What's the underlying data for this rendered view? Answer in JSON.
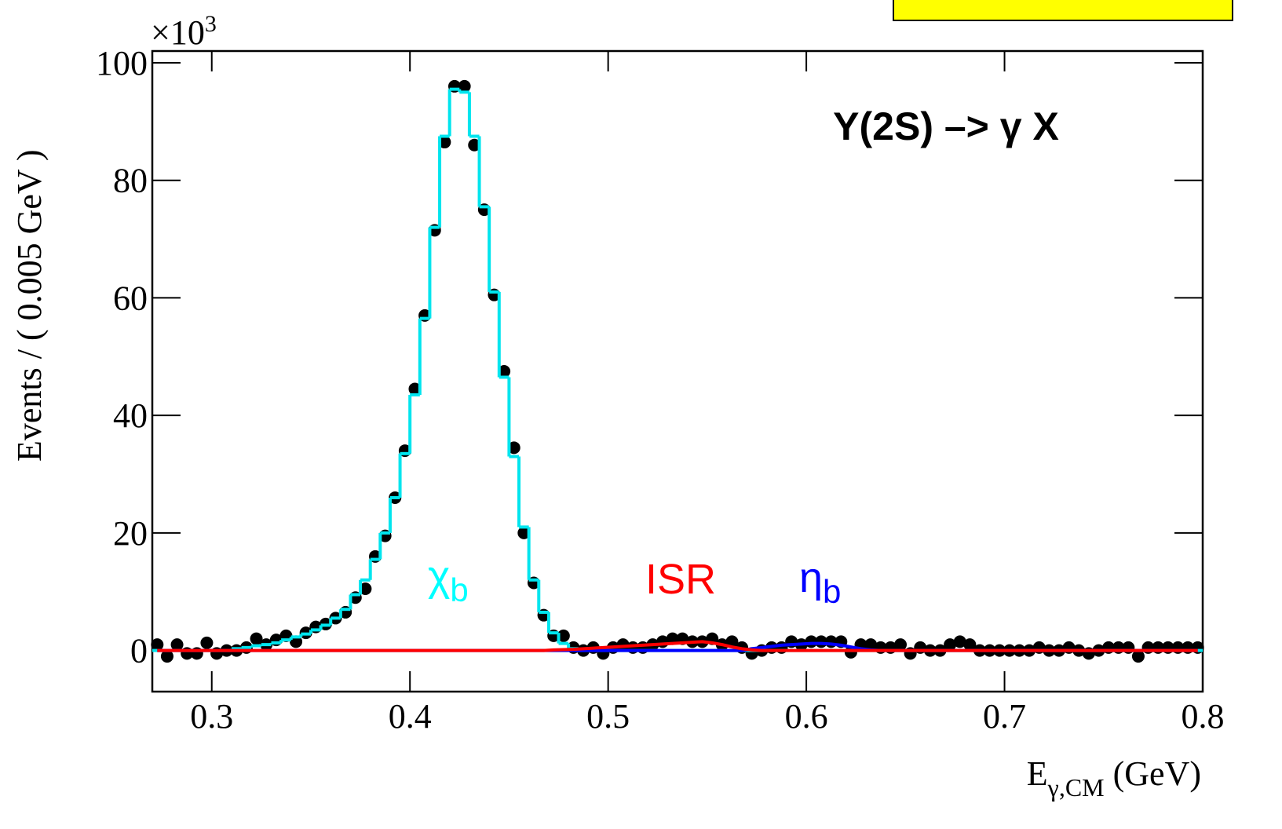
{
  "chart_data": {
    "type": "histogram-fit",
    "title": "Y(2S) –> γ X",
    "y_label": "Events / ( 0.005 GeV )",
    "y_exponent": {
      "base": "×10",
      "power": "3"
    },
    "x_label": {
      "text": "E",
      "subscript": "γ,CM",
      "unit": " (GeV)"
    },
    "xlim": [
      0.27,
      0.8
    ],
    "ylim": [
      -7,
      102
    ],
    "xticks": [
      0.3,
      0.4,
      0.5,
      0.6,
      0.7,
      0.8
    ],
    "yticks": [
      0,
      20,
      40,
      60,
      80,
      100
    ],
    "x": [
      0.2725,
      0.2775,
      0.2825,
      0.2875,
      0.2925,
      0.2975,
      0.3025,
      0.3075,
      0.3125,
      0.3175,
      0.3225,
      0.3275,
      0.3325,
      0.3375,
      0.3425,
      0.3475,
      0.3525,
      0.3575,
      0.3625,
      0.3675,
      0.3725,
      0.3775,
      0.3825,
      0.3875,
      0.3925,
      0.3975,
      0.4025,
      0.4075,
      0.4125,
      0.4175,
      0.4225,
      0.4275,
      0.4325,
      0.4375,
      0.4425,
      0.4475,
      0.4525,
      0.4575,
      0.4625,
      0.4675,
      0.4725,
      0.4775,
      0.4825,
      0.4875,
      0.4925,
      0.4975,
      0.5025,
      0.5075,
      0.5125,
      0.5175,
      0.5225,
      0.5275,
      0.5325,
      0.5375,
      0.5425,
      0.5475,
      0.5525,
      0.5575,
      0.5625,
      0.5675,
      0.5725,
      0.5775,
      0.5825,
      0.5875,
      0.5925,
      0.5975,
      0.6025,
      0.6075,
      0.6125,
      0.6175,
      0.6225,
      0.6275,
      0.6325,
      0.6375,
      0.6425,
      0.6475,
      0.6525,
      0.6575,
      0.6625,
      0.6675,
      0.6725,
      0.6775,
      0.6825,
      0.6875,
      0.6925,
      0.6975,
      0.7025,
      0.7075,
      0.7125,
      0.7175,
      0.7225,
      0.7275,
      0.7325,
      0.7375,
      0.7425,
      0.7475,
      0.7525,
      0.7575,
      0.7625,
      0.7675,
      0.7725,
      0.7775,
      0.7825,
      0.7875,
      0.7925,
      0.7975
    ],
    "series": [
      {
        "kind": "points",
        "color": "#000000",
        "values": [
          1,
          -1,
          1,
          -0.5,
          -0.5,
          1.3,
          -0.5,
          0,
          0,
          0.5,
          2,
          1,
          1.8,
          2.5,
          1.5,
          3,
          4,
          4.5,
          5.5,
          6.5,
          9,
          10.5,
          16,
          19.5,
          26,
          34,
          44.5,
          57,
          71.5,
          86.5,
          96,
          96,
          86,
          75,
          60.5,
          47.5,
          34.5,
          20,
          11.5,
          6,
          2.5,
          2.5,
          0.5,
          0,
          0.5,
          -0.5,
          0.5,
          1,
          0.5,
          0.5,
          1,
          1.5,
          2,
          2,
          1.5,
          1.5,
          2,
          1,
          1.5,
          0.5,
          -0.5,
          0,
          0.5,
          0.5,
          1.5,
          1,
          1.5,
          1.5,
          1.5,
          1.5,
          -0.3,
          1,
          1,
          0.5,
          0.5,
          1,
          -0.5,
          0.5,
          0,
          0,
          1,
          1.5,
          1,
          0,
          0,
          0,
          0,
          0,
          0,
          0.5,
          0,
          0,
          0.5,
          0,
          -0.5,
          0,
          0.5,
          0.5,
          0.5,
          -1,
          0.5,
          0.5,
          0.5,
          0.5,
          0.5,
          0.5
        ]
      },
      {
        "kind": "step",
        "color": "#00e5ee",
        "values": [
          0,
          0,
          0,
          0,
          0,
          0,
          0,
          0,
          0.3,
          0.5,
          0.8,
          1,
          1.3,
          1.8,
          2.3,
          2.8,
          3.5,
          4.3,
          5.5,
          7,
          9.5,
          12,
          15.5,
          20,
          26,
          33.5,
          43.5,
          56.5,
          72,
          87.5,
          95.5,
          95,
          87.5,
          75.5,
          61,
          46.5,
          33,
          21,
          12,
          6.5,
          3,
          1.2,
          0.3,
          0,
          0,
          0,
          0,
          0,
          0,
          0,
          0,
          0,
          0,
          0,
          0,
          0,
          0,
          0,
          0,
          0,
          0,
          0,
          0,
          0,
          0,
          0,
          0,
          0,
          0,
          0,
          0,
          0,
          0,
          0,
          0,
          0,
          0,
          0,
          0,
          0,
          0,
          0,
          0,
          0,
          0,
          0,
          0,
          0,
          0,
          0,
          0,
          0,
          0,
          0,
          0,
          0,
          0,
          0,
          0,
          0,
          0,
          0,
          0,
          0,
          0,
          0
        ]
      },
      {
        "kind": "curve",
        "color": "#0000ff",
        "values": [
          0,
          0,
          0,
          0,
          0,
          0,
          0,
          0,
          0,
          0,
          0,
          0,
          0,
          0,
          0,
          0,
          0,
          0,
          0,
          0,
          0,
          0,
          0,
          0,
          0,
          0,
          0,
          0,
          0,
          0,
          0,
          0,
          0,
          0,
          0,
          0,
          0,
          0,
          0,
          0,
          0,
          0,
          0,
          0,
          0,
          0,
          0,
          0,
          0,
          0,
          0,
          0,
          0,
          0,
          0,
          0,
          0,
          0,
          0,
          0,
          0.3,
          0.5,
          0.7,
          0.9,
          1,
          1.1,
          1.2,
          1.2,
          1.1,
          0.9,
          0.6,
          0.3,
          0.1,
          0,
          0,
          0,
          0,
          0,
          0,
          0,
          0,
          0,
          0,
          0,
          0,
          0,
          0,
          0,
          0,
          0,
          0,
          0,
          0,
          0,
          0,
          0,
          0,
          0,
          0,
          0,
          0,
          0,
          0,
          0,
          0,
          0
        ]
      },
      {
        "kind": "curve",
        "color": "#ff0000",
        "values": [
          0,
          0,
          0,
          0,
          0,
          0,
          0,
          0,
          0,
          0,
          0,
          0,
          0,
          0,
          0,
          0,
          0,
          0,
          0,
          0,
          0,
          0,
          0,
          0,
          0,
          0,
          0,
          0,
          0,
          0,
          0,
          0,
          0,
          0,
          0,
          0,
          0,
          0,
          0,
          0,
          0.1,
          0.15,
          0.2,
          0.3,
          0.4,
          0.5,
          0.6,
          0.7,
          0.8,
          0.9,
          1,
          1.1,
          1.2,
          1.3,
          1.4,
          1.5,
          1.3,
          1,
          0.6,
          0.3,
          0.1,
          0,
          0,
          0,
          0,
          0,
          0,
          0,
          0,
          0,
          0,
          0,
          0,
          0,
          0,
          0,
          0,
          0,
          0,
          0,
          0,
          0,
          0,
          0,
          0,
          0,
          0,
          0,
          0,
          0,
          0,
          0,
          0,
          0,
          0,
          0,
          0,
          0,
          0,
          0,
          0,
          0,
          0,
          0,
          0,
          0
        ]
      }
    ],
    "annotations": [
      {
        "text": "χ",
        "subscript": "b",
        "color": "#00ffff"
      },
      {
        "text": "ISR",
        "color": "#ff0000"
      },
      {
        "text": "η",
        "subscript": "b",
        "color": "#0000ff"
      }
    ]
  }
}
